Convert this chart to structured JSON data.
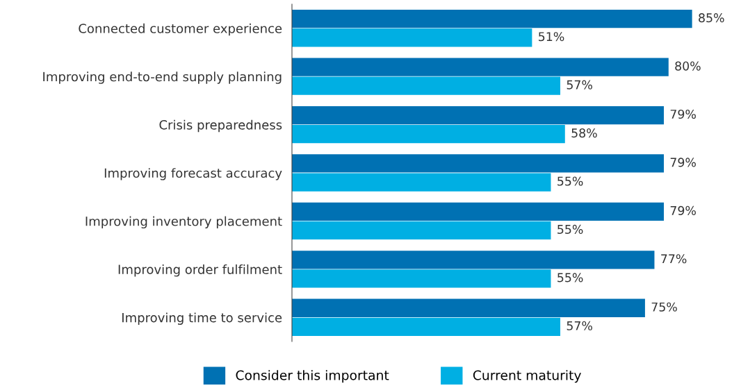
{
  "chart_data": {
    "type": "bar",
    "orientation": "horizontal",
    "categories": [
      "Connected customer experience",
      "Improving end-to-end supply planning",
      "Crisis preparedness",
      "Improving forecast accuracy",
      "Improving inventory placement",
      "Improving order fulfilment",
      "Improving time to service"
    ],
    "series": [
      {
        "name": "Consider this important",
        "color": "#0071b3",
        "values": [
          85,
          80,
          79,
          79,
          79,
          77,
          75
        ],
        "value_labels": [
          "85%",
          "80%",
          "79%",
          "79%",
          "79%",
          "77%",
          "75%"
        ]
      },
      {
        "name": "Current maturity",
        "color": "#00afe3",
        "values": [
          51,
          57,
          58,
          55,
          55,
          55,
          57
        ],
        "value_labels": [
          "51%",
          "57%",
          "58%",
          "55%",
          "55%",
          "55%",
          "57%"
        ]
      }
    ],
    "legend": "bottom",
    "grid": false
  }
}
